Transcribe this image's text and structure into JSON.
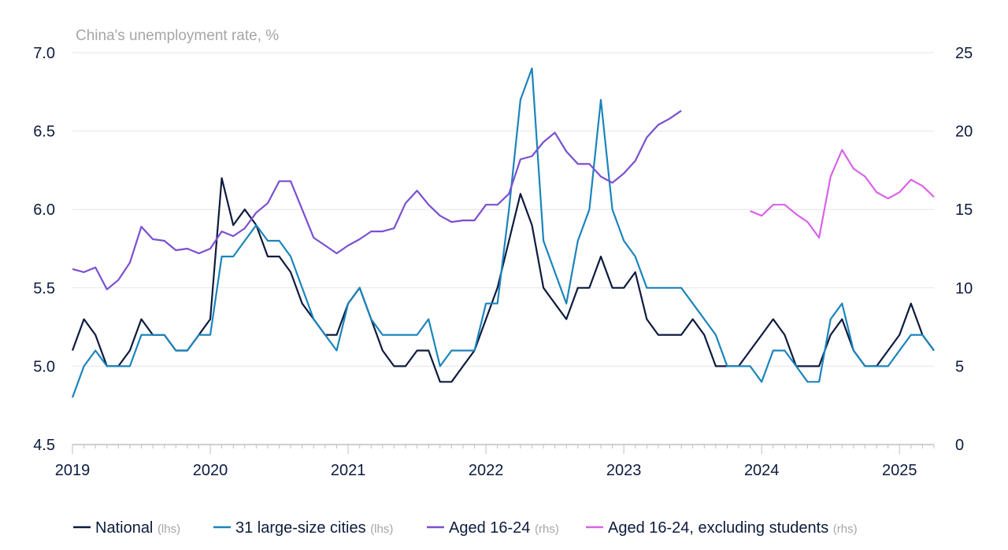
{
  "chart_data": {
    "type": "line",
    "title": "China's unemployment rate, %",
    "left_axis": {
      "min": 4.5,
      "max": 7.0,
      "ticks": [
        "4.5",
        "5.0",
        "5.5",
        "6.0",
        "6.5",
        "7.0"
      ]
    },
    "right_axis": {
      "min": 0,
      "max": 25,
      "ticks": [
        "0",
        "5",
        "10",
        "15",
        "20",
        "25"
      ]
    },
    "x_axis": {
      "start": "2019-01",
      "end": "2025-04",
      "ticks": [
        "2019",
        "2020",
        "2021",
        "2022",
        "2023",
        "2024",
        "2025"
      ]
    },
    "series": [
      {
        "name": "National",
        "axis_note": "(lhs)",
        "axis": "left",
        "color": "#0d1b3e",
        "start_month": 0,
        "values": [
          5.1,
          5.3,
          5.2,
          5.0,
          5.0,
          5.1,
          5.3,
          5.2,
          5.2,
          5.1,
          5.1,
          5.2,
          5.3,
          6.2,
          5.9,
          6.0,
          5.9,
          5.7,
          5.7,
          5.6,
          5.4,
          5.3,
          5.2,
          5.2,
          5.4,
          5.5,
          5.3,
          5.1,
          5.0,
          5.0,
          5.1,
          5.1,
          4.9,
          4.9,
          5.0,
          5.1,
          5.3,
          5.5,
          5.8,
          6.1,
          5.9,
          5.5,
          5.4,
          5.3,
          5.5,
          5.5,
          5.7,
          5.5,
          5.5,
          5.6,
          5.3,
          5.2,
          5.2,
          5.2,
          5.3,
          5.2,
          5.0,
          5.0,
          5.0,
          5.1,
          5.2,
          5.3,
          5.2,
          5.0,
          5.0,
          5.0,
          5.2,
          5.3,
          5.1,
          5.0,
          5.0,
          5.1,
          5.2,
          5.4,
          5.2,
          5.1
        ]
      },
      {
        "name": "31 large-size cities",
        "axis_note": "(lhs)",
        "axis": "left",
        "color": "#1b84bc",
        "start_month": 0,
        "values": [
          4.8,
          5.0,
          5.1,
          5.0,
          5.0,
          5.0,
          5.2,
          5.2,
          5.2,
          5.1,
          5.1,
          5.2,
          5.2,
          5.7,
          5.7,
          5.8,
          5.9,
          5.8,
          5.8,
          5.7,
          5.5,
          5.3,
          5.2,
          5.1,
          5.4,
          5.5,
          5.3,
          5.2,
          5.2,
          5.2,
          5.2,
          5.3,
          5.0,
          5.1,
          5.1,
          5.1,
          5.4,
          5.4,
          6.0,
          6.7,
          6.9,
          5.8,
          5.6,
          5.4,
          5.8,
          6.0,
          6.7,
          6.0,
          5.8,
          5.7,
          5.5,
          5.5,
          5.5,
          5.5,
          5.4,
          5.3,
          5.2,
          5.0,
          5.0,
          5.0,
          4.9,
          5.1,
          5.1,
          5.0,
          4.9,
          4.9,
          5.3,
          5.4,
          5.1,
          5.0,
          5.0,
          5.0,
          5.1,
          5.2,
          5.2,
          5.1
        ]
      },
      {
        "name": "Aged 16-24",
        "axis_note": "(rhs)",
        "axis": "right",
        "color": "#7b4fd1",
        "start_month": 0,
        "values": [
          11.2,
          11.0,
          11.3,
          9.9,
          10.5,
          11.6,
          13.9,
          13.1,
          13.0,
          12.4,
          12.5,
          12.2,
          12.5,
          13.6,
          13.3,
          13.8,
          14.8,
          15.4,
          16.8,
          16.8,
          15.0,
          13.2,
          12.7,
          12.2,
          12.7,
          13.1,
          13.6,
          13.6,
          13.8,
          15.4,
          16.2,
          15.3,
          14.6,
          14.2,
          14.3,
          14.3,
          15.3,
          15.3,
          16.0,
          18.2,
          18.4,
          19.3,
          19.9,
          18.7,
          17.9,
          17.9,
          17.1,
          16.7,
          17.3,
          18.1,
          19.6,
          20.4,
          20.8,
          21.3
        ]
      },
      {
        "name": "Aged 16-24, excluding students",
        "axis_note": "(rhs)",
        "axis": "right",
        "color": "#d962e8",
        "start_month": 59,
        "values": [
          14.9,
          14.6,
          15.3,
          15.3,
          14.7,
          14.2,
          13.2,
          17.1,
          18.8,
          17.6,
          17.1,
          16.1,
          15.7,
          16.1,
          16.9,
          16.5,
          15.8
        ]
      }
    ]
  }
}
